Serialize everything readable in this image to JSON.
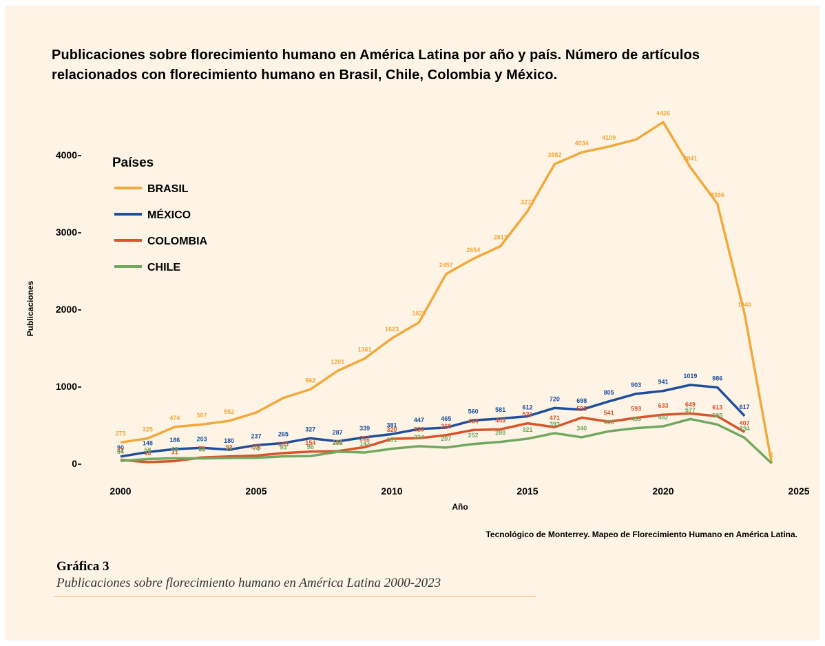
{
  "chart_data": {
    "type": "line",
    "title": "Publicaciones sobre florecimiento humano en América Latina por año y país. Número de artículos relacionados con florecimiento humano en Brasil, Chile, Colombia y México.",
    "x": [
      2000,
      2001,
      2002,
      2003,
      2004,
      2005,
      2006,
      2007,
      2008,
      2009,
      2010,
      2011,
      2012,
      2013,
      2014,
      2015,
      2016,
      2017,
      2018,
      2019,
      2020,
      2021,
      2022,
      2023,
      2024
    ],
    "xlim": [
      2000,
      2025
    ],
    "xticks": [
      2000,
      2005,
      2010,
      2015,
      2020,
      2025
    ],
    "ylim": [
      0,
      4500
    ],
    "yticks": [
      0,
      1000,
      2000,
      3000,
      4000
    ],
    "xlabel": "Año",
    "ylabel": "Publicaciones",
    "legend_title": "Países",
    "legend": "upper left",
    "series": [
      {
        "name": "BRASIL",
        "color": "#f2a93b",
        "values": [
          273,
          325,
          474,
          507,
          552,
          660,
          850,
          962,
          1201,
          1361,
          1623,
          1829,
          2457,
          2654,
          2817,
          3271,
          3882,
          4034,
          4109,
          4200,
          4426,
          3841,
          3366,
          1940,
          1
        ],
        "value_labels": [
          "273",
          "325",
          "474",
          "507",
          "552",
          null,
          null,
          "962",
          "1201",
          "1361",
          "1623",
          "1829",
          "2457",
          "2654",
          "2817",
          "3271",
          "3882",
          "4034",
          "4109",
          null,
          "4426",
          "3841",
          "3366",
          "1940",
          "1"
        ]
      },
      {
        "name": "MÉXICO",
        "color": "#1f4e9c",
        "values": [
          90,
          148,
          186,
          203,
          180,
          237,
          265,
          327,
          287,
          339,
          381,
          447,
          465,
          560,
          581,
          612,
          720,
          698,
          805,
          903,
          941,
          1019,
          986,
          617,
          null
        ],
        "value_labels": [
          "90",
          "148",
          "186",
          "203",
          "180",
          "237",
          "265",
          "327",
          "287",
          "339",
          "381",
          "447",
          "465",
          "560",
          "581",
          "612",
          "720",
          "698",
          "805",
          "903",
          "941",
          "1019",
          "986",
          "617",
          null
        ]
      },
      {
        "name": "COLOMBIA",
        "color": "#d9532b",
        "values": [
          47,
          18,
          31,
          78,
          92,
          102,
          135,
          154,
          160,
          212,
          320,
          328,
          368,
          434,
          443,
          521,
          471,
          595,
          541,
          593,
          633,
          649,
          613,
          407,
          null
        ],
        "value_labels": [
          "47",
          "18",
          "31",
          "78",
          "92",
          "102",
          "135",
          "154",
          "160",
          "212",
          "320",
          "328",
          "368",
          "434",
          "443",
          "521",
          "471",
          "595",
          "541",
          "593",
          "633",
          "649",
          "613",
          "407",
          null
        ]
      },
      {
        "name": "CHILE",
        "color": "#72a860",
        "values": [
          34,
          58,
          68,
          66,
          71,
          74,
          93,
          96,
          152,
          143,
          191,
          224,
          207,
          252,
          280,
          321,
          393,
          340,
          418,
          459,
          482,
          577,
          505,
          334,
          1
        ],
        "value_labels": [
          "34",
          "58",
          "68",
          "66",
          "71",
          "74",
          "93",
          "96",
          "152",
          "143",
          "191",
          "224",
          "207",
          "252",
          "280",
          "321",
          "393",
          "340",
          "418",
          "459",
          "482",
          "577",
          "505",
          "334",
          null
        ]
      }
    ],
    "source": "Tecnológico de Monterrey. Mapeo de Florecimiento Humano en América Latina."
  },
  "caption": {
    "label": "Gráfica 3",
    "text": "Publicaciones sobre florecimiento humano en América Latina 2000-2023"
  }
}
